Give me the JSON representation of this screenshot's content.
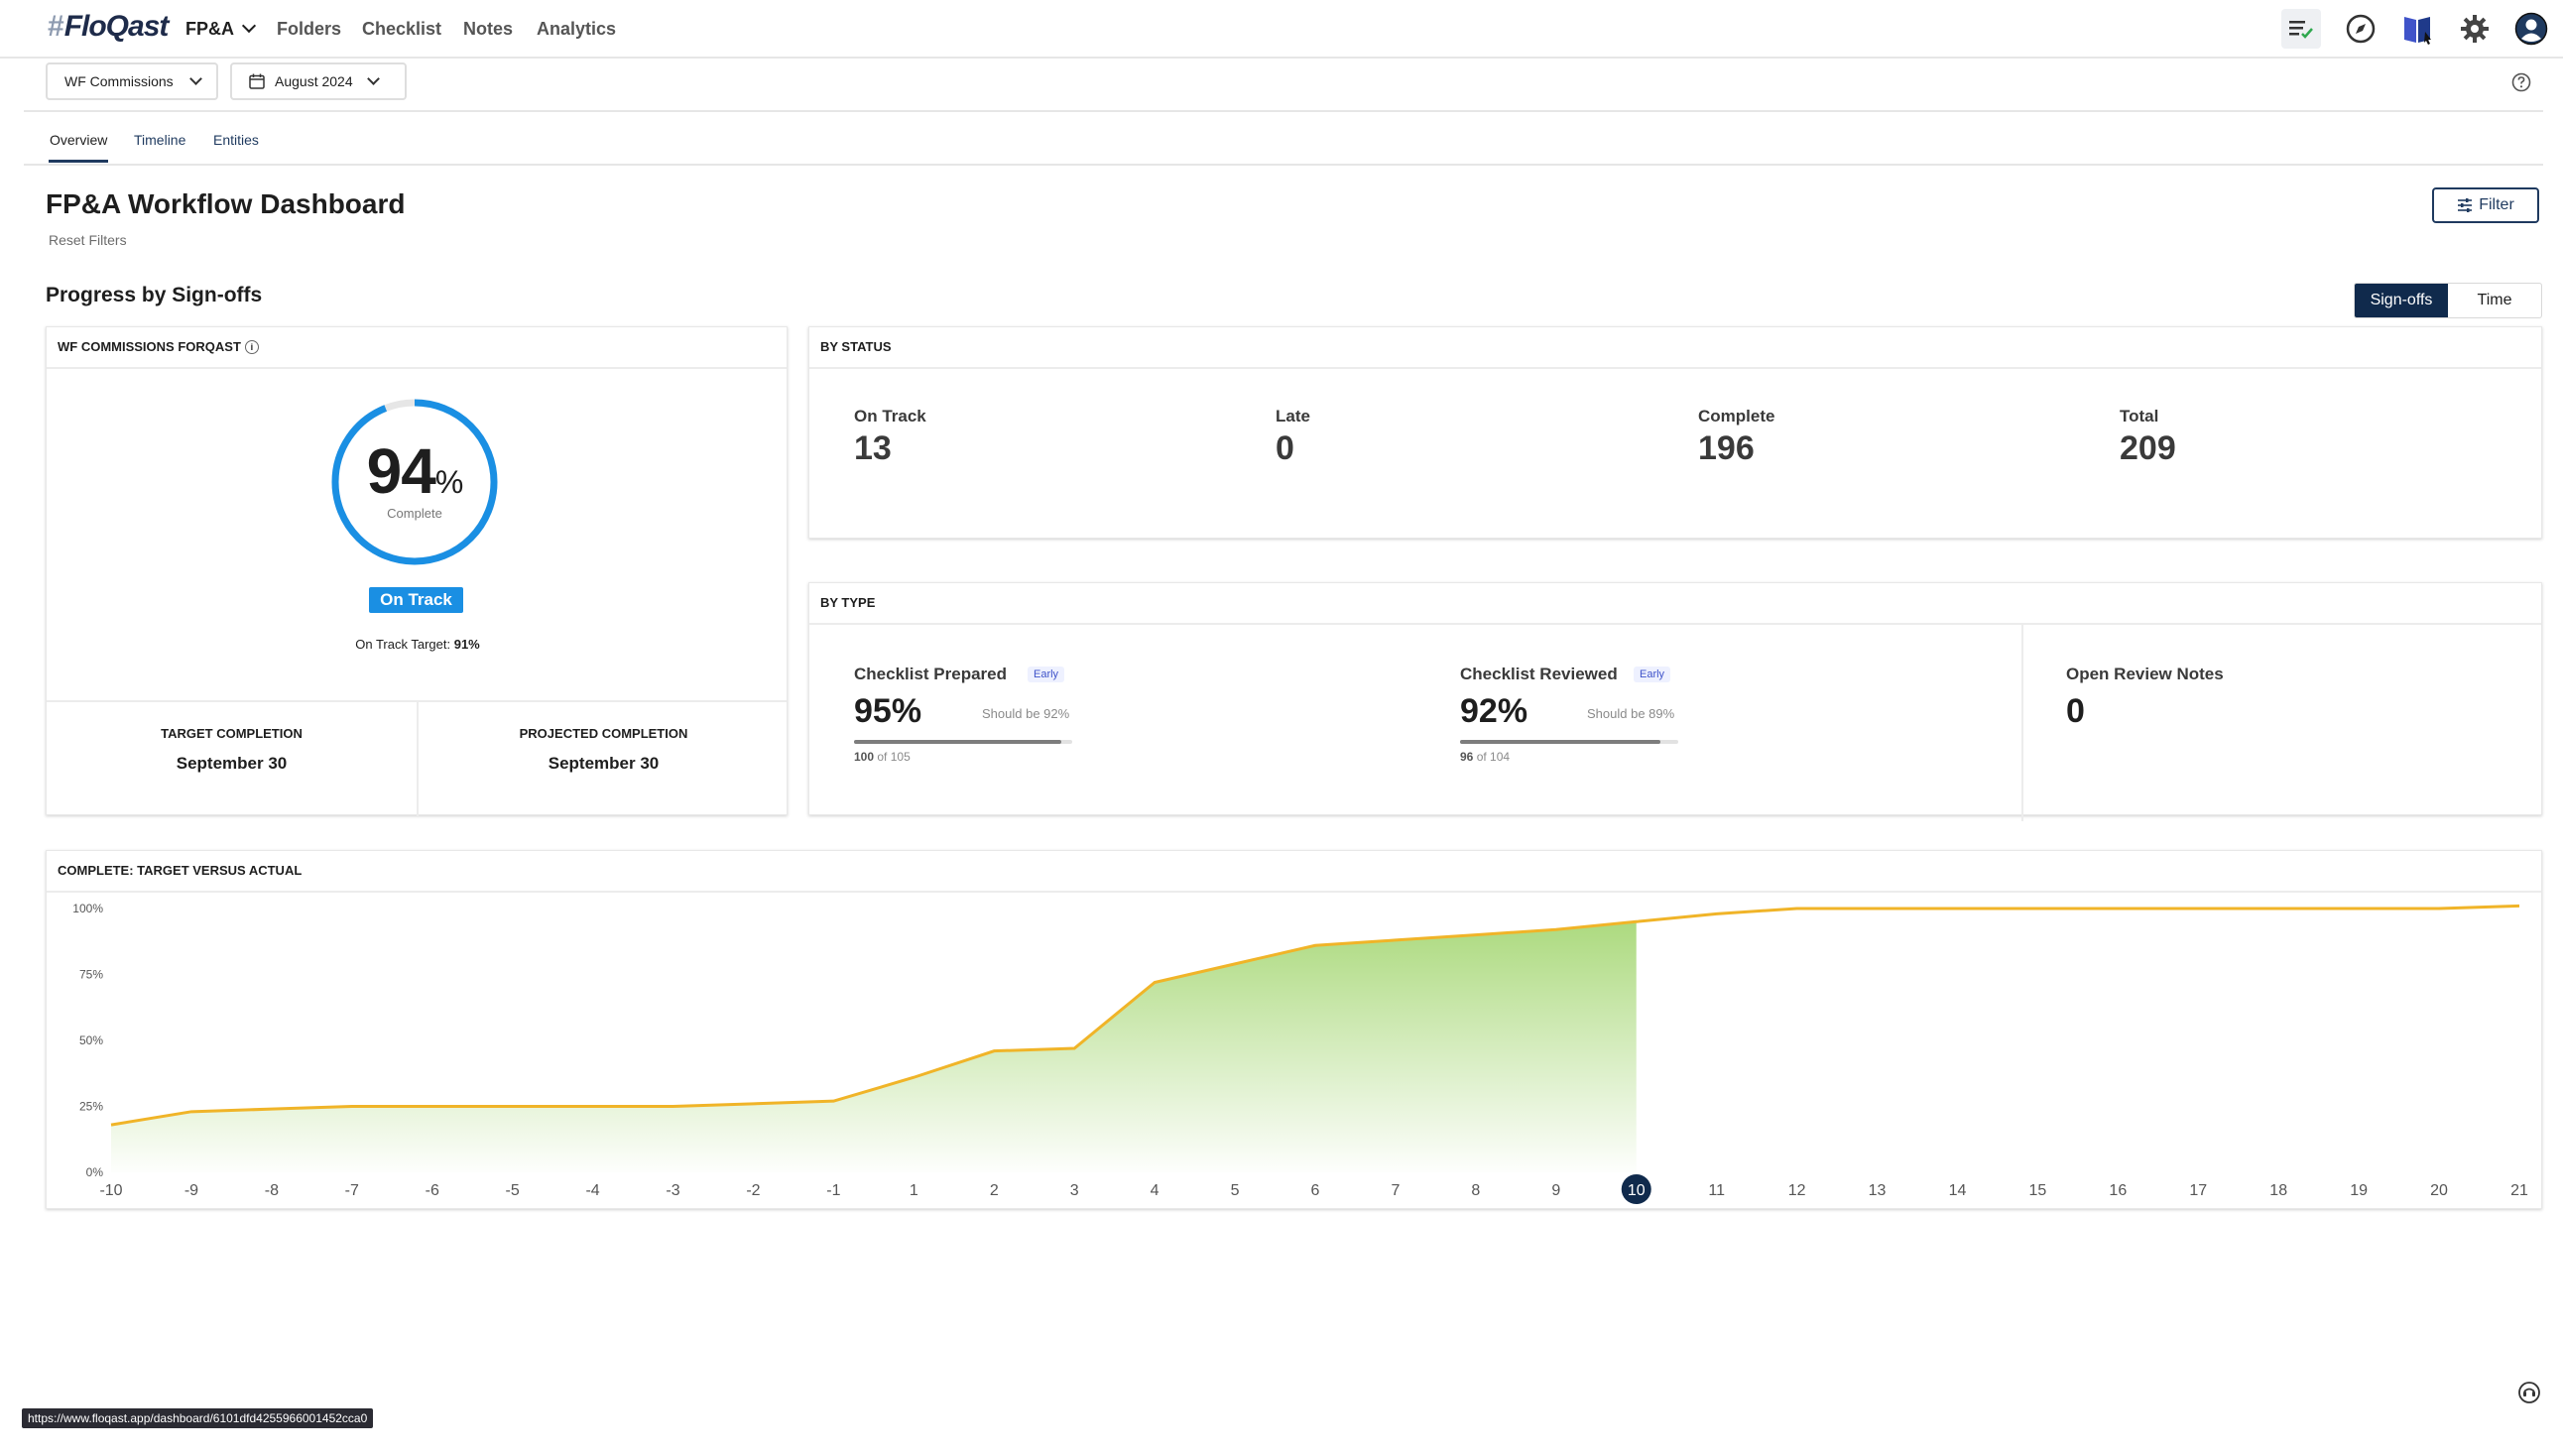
{
  "nav": {
    "logo_hash": "#",
    "logo_text": "FloQast",
    "items": [
      {
        "label": "FP&A"
      },
      {
        "label": "Folders"
      },
      {
        "label": "Checklist"
      },
      {
        "label": "Notes"
      },
      {
        "label": "Analytics"
      }
    ],
    "icons": [
      "checklist-icon",
      "compass-icon",
      "book-icon",
      "gear-icon",
      "user-avatar-icon"
    ]
  },
  "subbar": {
    "workflow": "WF Commissions",
    "period": "August 2024"
  },
  "tabs": [
    {
      "label": "Overview",
      "active": true
    },
    {
      "label": "Timeline"
    },
    {
      "label": "Entities"
    }
  ],
  "header": {
    "title": "FP&A Workflow Dashboard",
    "reset": "Reset Filters",
    "filter": "Filter"
  },
  "progress": {
    "section_title": "Progress by Sign-offs",
    "toggle": [
      "Sign-offs",
      "Time"
    ],
    "card_title": "WF COMMISSIONS FORQAST",
    "percent": "94",
    "percent_sign": "%",
    "percent_value": 94,
    "complete_label": "Complete",
    "status": "On Track",
    "target_label": "On Track Target:",
    "target_value": "91%",
    "target_completion_label": "TARGET COMPLETION",
    "target_completion": "September 30",
    "projected_completion_label": "PROJECTED COMPLETION",
    "projected_completion": "September 30",
    "ring_color": "#1a8fe3"
  },
  "by_status": {
    "title": "BY STATUS",
    "items": [
      {
        "label": "On Track",
        "value": "13"
      },
      {
        "label": "Late",
        "value": "0"
      },
      {
        "label": "Complete",
        "value": "196"
      },
      {
        "label": "Total",
        "value": "209"
      }
    ]
  },
  "by_type": {
    "title": "BY TYPE",
    "prepared": {
      "label": "Checklist Prepared",
      "badge": "Early",
      "value": "95%",
      "should": "Should be 92%",
      "count": "100",
      "of": "of 105",
      "fill": 0.95
    },
    "reviewed": {
      "label": "Checklist Reviewed",
      "badge": "Early",
      "value": "92%",
      "should": "Should be 89%",
      "count": "96",
      "of": "of 104",
      "fill": 0.92
    },
    "notes": {
      "label": "Open Review Notes",
      "value": "0"
    }
  },
  "chart_data": {
    "type": "area",
    "title": "COMPLETE: TARGET VERSUS ACTUAL",
    "x": [
      -10,
      -9,
      -8,
      -7,
      -6,
      -5,
      -4,
      -3,
      -2,
      -1,
      1,
      2,
      3,
      4,
      5,
      6,
      7,
      8,
      9,
      10,
      11,
      12,
      13,
      14,
      15,
      16,
      17,
      18,
      19,
      20,
      21
    ],
    "y_ticks": [
      "100%",
      "75%",
      "50%",
      "25%",
      "0%"
    ],
    "ylim": [
      0,
      100
    ],
    "highlight_x": 10,
    "series": [
      {
        "values": [
          18,
          23,
          24,
          25,
          25,
          25,
          25,
          25,
          26,
          27,
          36,
          46,
          47,
          72,
          79,
          86,
          88,
          90,
          92,
          95,
          98,
          100,
          100,
          100,
          100,
          100,
          100,
          100,
          100,
          100,
          101
        ]
      }
    ],
    "actual_until_index": 19,
    "line_color": "#f0b428",
    "fill_color": "#a8d878",
    "marker_color": "#102a4c"
  },
  "status_url": "https://www.floqast.app/dashboard/6101dfd4255966001452cca0"
}
